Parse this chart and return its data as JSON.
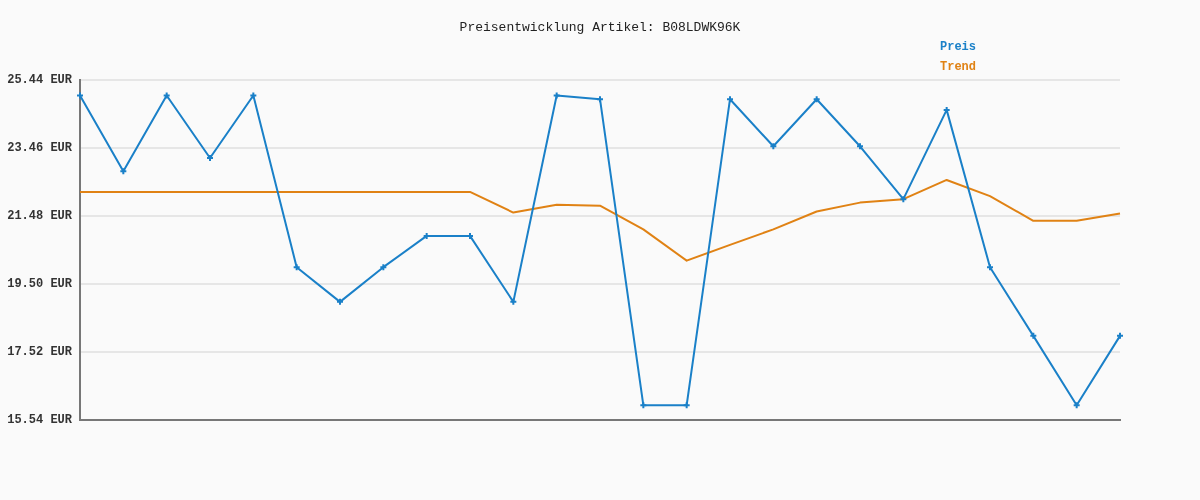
{
  "chart_data": {
    "type": "line",
    "title": "Preisentwicklung Artikel: B08LDWK96K",
    "categories": [
      null,
      null,
      null,
      null,
      null,
      null,
      null,
      null,
      null,
      null,
      null,
      null,
      null,
      null,
      null,
      null,
      null,
      null,
      null,
      null,
      null,
      null,
      null,
      null,
      null
    ],
    "series": [
      {
        "name": "Preis",
        "color": "#1a80c8",
        "marker": "cross",
        "values": [
          24.99,
          22.78,
          24.99,
          23.17,
          24.99,
          19.99,
          18.98,
          19.99,
          20.9,
          20.9,
          18.98,
          24.99,
          24.88,
          15.97,
          15.97,
          24.88,
          23.51,
          24.88,
          23.51,
          21.97,
          24.57,
          19.99,
          17.99,
          15.97,
          17.99
        ]
      },
      {
        "name": "Trend",
        "color": "#e08214",
        "marker": "none",
        "values": [
          22.18,
          22.18,
          22.18,
          22.18,
          22.18,
          22.18,
          22.18,
          22.18,
          22.18,
          22.18,
          21.58,
          21.81,
          21.78,
          21.09,
          20.18,
          20.64,
          21.09,
          21.61,
          21.87,
          21.97,
          22.53,
          22.06,
          21.34,
          21.34,
          21.55
        ]
      }
    ],
    "ylim": [
      15.54,
      25.44
    ],
    "yticks": [
      {
        "value": 15.54,
        "label": "15.54 EUR"
      },
      {
        "value": 17.52,
        "label": "17.52 EUR"
      },
      {
        "value": 19.5,
        "label": "19.50 EUR"
      },
      {
        "value": 21.48,
        "label": "21.48 EUR"
      },
      {
        "value": 23.46,
        "label": "23.46 EUR"
      },
      {
        "value": 25.44,
        "label": "25.44 EUR"
      }
    ],
    "grid": "y",
    "legend": "top right"
  }
}
